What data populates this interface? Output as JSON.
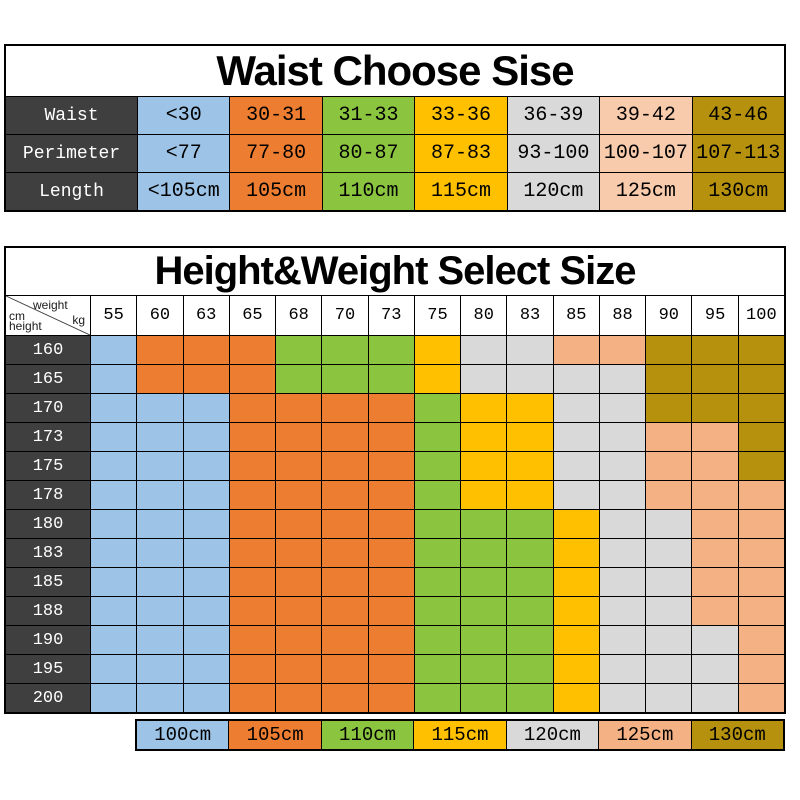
{
  "colors": {
    "blue": "#9DC3E6",
    "orange": "#ED7D31",
    "green": "#8BC540",
    "yellow": "#FFC000",
    "gray": "#D9D9D9",
    "peach": "#F4B183",
    "peach_light": "#F8CBAD",
    "gold": "#B5910E",
    "header_dark": "#3F3F3F",
    "border": "#000000",
    "header_text": "#FFFFFF",
    "body_text": "#000000",
    "page_background": "#FFFFFF"
  },
  "waist_table": {
    "title": "Waist Choose Sise",
    "column_colors": [
      "blue",
      "orange",
      "green",
      "yellow",
      "gray",
      "peach_light",
      "gold"
    ],
    "rows": [
      {
        "label": "Waist",
        "cells": [
          "<30",
          "30-31",
          "31-33",
          "33-36",
          "36-39",
          "39-42",
          "43-46"
        ]
      },
      {
        "label": "Perimeter",
        "cells": [
          "<77",
          "77-80",
          "80-87",
          "87-83",
          "93-100",
          "100-107",
          "107-113"
        ]
      },
      {
        "label": "Length",
        "cells": [
          "<105cm",
          "105cm",
          "110cm",
          "115cm",
          "120cm",
          "125cm",
          "130cm"
        ]
      }
    ]
  },
  "size_grid": {
    "title": "Height&Weight Select Size",
    "corner": {
      "weight_label": "weight",
      "kg_label": "kg",
      "cm_label": "cm",
      "height_label": "height"
    },
    "weight_columns": [
      "55",
      "60",
      "63",
      "65",
      "68",
      "70",
      "73",
      "75",
      "80",
      "83",
      "85",
      "88",
      "90",
      "95",
      "100"
    ],
    "rows": [
      {
        "height": "160",
        "cells": [
          "blue",
          "orange",
          "orange",
          "orange",
          "green",
          "green",
          "green",
          "yellow",
          "gray",
          "gray",
          "peach",
          "peach",
          "gold",
          "gold",
          "gold"
        ]
      },
      {
        "height": "165",
        "cells": [
          "blue",
          "orange",
          "orange",
          "orange",
          "green",
          "green",
          "green",
          "yellow",
          "gray",
          "gray",
          "gray",
          "gray",
          "gold",
          "gold",
          "gold"
        ]
      },
      {
        "height": "170",
        "cells": [
          "blue",
          "blue",
          "blue",
          "orange",
          "orange",
          "orange",
          "orange",
          "green",
          "yellow",
          "yellow",
          "gray",
          "gray",
          "gold",
          "gold",
          "gold"
        ]
      },
      {
        "height": "173",
        "cells": [
          "blue",
          "blue",
          "blue",
          "orange",
          "orange",
          "orange",
          "orange",
          "green",
          "yellow",
          "yellow",
          "gray",
          "gray",
          "peach",
          "peach",
          "gold"
        ]
      },
      {
        "height": "175",
        "cells": [
          "blue",
          "blue",
          "blue",
          "orange",
          "orange",
          "orange",
          "orange",
          "green",
          "yellow",
          "yellow",
          "gray",
          "gray",
          "peach",
          "peach",
          "gold"
        ]
      },
      {
        "height": "178",
        "cells": [
          "blue",
          "blue",
          "blue",
          "orange",
          "orange",
          "orange",
          "orange",
          "green",
          "yellow",
          "yellow",
          "gray",
          "gray",
          "peach",
          "peach",
          "peach"
        ]
      },
      {
        "height": "180",
        "cells": [
          "blue",
          "blue",
          "blue",
          "orange",
          "orange",
          "orange",
          "orange",
          "green",
          "green",
          "green",
          "yellow",
          "gray",
          "gray",
          "peach",
          "peach"
        ]
      },
      {
        "height": "183",
        "cells": [
          "blue",
          "blue",
          "blue",
          "orange",
          "orange",
          "orange",
          "orange",
          "green",
          "green",
          "green",
          "yellow",
          "gray",
          "gray",
          "peach",
          "peach"
        ]
      },
      {
        "height": "185",
        "cells": [
          "blue",
          "blue",
          "blue",
          "orange",
          "orange",
          "orange",
          "orange",
          "green",
          "green",
          "green",
          "yellow",
          "gray",
          "gray",
          "peach",
          "peach"
        ]
      },
      {
        "height": "188",
        "cells": [
          "blue",
          "blue",
          "blue",
          "orange",
          "orange",
          "orange",
          "orange",
          "green",
          "green",
          "green",
          "yellow",
          "gray",
          "gray",
          "peach",
          "peach"
        ]
      },
      {
        "height": "190",
        "cells": [
          "blue",
          "blue",
          "blue",
          "orange",
          "orange",
          "orange",
          "orange",
          "green",
          "green",
          "green",
          "yellow",
          "gray",
          "gray",
          "gray",
          "peach"
        ]
      },
      {
        "height": "195",
        "cells": [
          "blue",
          "blue",
          "blue",
          "orange",
          "orange",
          "orange",
          "orange",
          "green",
          "green",
          "green",
          "yellow",
          "gray",
          "gray",
          "gray",
          "peach"
        ]
      },
      {
        "height": "200",
        "cells": [
          "blue",
          "blue",
          "blue",
          "orange",
          "orange",
          "orange",
          "orange",
          "green",
          "green",
          "green",
          "yellow",
          "gray",
          "gray",
          "gray",
          "peach"
        ]
      }
    ]
  },
  "legend": {
    "items": [
      {
        "label": "100cm",
        "color": "blue"
      },
      {
        "label": "105cm",
        "color": "orange"
      },
      {
        "label": "110cm",
        "color": "green"
      },
      {
        "label": "115cm",
        "color": "yellow"
      },
      {
        "label": "120cm",
        "color": "gray"
      },
      {
        "label": "125cm",
        "color": "peach"
      },
      {
        "label": "130cm",
        "color": "gold"
      }
    ]
  },
  "chart_data": [
    {
      "type": "table",
      "title": "Waist Choose Sise",
      "rows": [
        [
          "Waist",
          "<30",
          "30-31",
          "31-33",
          "33-36",
          "36-39",
          "39-42",
          "43-46"
        ],
        [
          "Perimeter",
          "<77",
          "77-80",
          "80-87",
          "87-83",
          "93-100",
          "100-107",
          "107-113"
        ],
        [
          "Length",
          "<105cm",
          "105cm",
          "110cm",
          "115cm",
          "120cm",
          "125cm",
          "130cm"
        ]
      ]
    },
    {
      "type": "heatmap",
      "title": "Height&Weight Select Size",
      "xlabel": "weight kg",
      "ylabel": "height cm",
      "x": [
        "55",
        "60",
        "63",
        "65",
        "68",
        "70",
        "73",
        "75",
        "80",
        "83",
        "85",
        "88",
        "90",
        "95",
        "100"
      ],
      "y": [
        "160",
        "165",
        "170",
        "173",
        "175",
        "178",
        "180",
        "183",
        "185",
        "188",
        "190",
        "195",
        "200"
      ],
      "values": [
        [
          "100cm",
          "105cm",
          "105cm",
          "105cm",
          "110cm",
          "110cm",
          "110cm",
          "115cm",
          "120cm",
          "120cm",
          "125cm",
          "125cm",
          "130cm",
          "130cm",
          "130cm"
        ],
        [
          "100cm",
          "105cm",
          "105cm",
          "105cm",
          "110cm",
          "110cm",
          "110cm",
          "115cm",
          "120cm",
          "120cm",
          "120cm",
          "120cm",
          "130cm",
          "130cm",
          "130cm"
        ],
        [
          "100cm",
          "100cm",
          "100cm",
          "105cm",
          "105cm",
          "105cm",
          "105cm",
          "110cm",
          "115cm",
          "115cm",
          "120cm",
          "120cm",
          "130cm",
          "130cm",
          "130cm"
        ],
        [
          "100cm",
          "100cm",
          "100cm",
          "105cm",
          "105cm",
          "105cm",
          "105cm",
          "110cm",
          "115cm",
          "115cm",
          "120cm",
          "120cm",
          "125cm",
          "125cm",
          "130cm"
        ],
        [
          "100cm",
          "100cm",
          "100cm",
          "105cm",
          "105cm",
          "105cm",
          "105cm",
          "110cm",
          "115cm",
          "115cm",
          "120cm",
          "120cm",
          "125cm",
          "125cm",
          "130cm"
        ],
        [
          "100cm",
          "100cm",
          "100cm",
          "105cm",
          "105cm",
          "105cm",
          "105cm",
          "110cm",
          "115cm",
          "115cm",
          "120cm",
          "120cm",
          "125cm",
          "125cm",
          "125cm"
        ],
        [
          "100cm",
          "100cm",
          "100cm",
          "105cm",
          "105cm",
          "105cm",
          "105cm",
          "110cm",
          "110cm",
          "110cm",
          "115cm",
          "120cm",
          "120cm",
          "125cm",
          "125cm"
        ],
        [
          "100cm",
          "100cm",
          "100cm",
          "105cm",
          "105cm",
          "105cm",
          "105cm",
          "110cm",
          "110cm",
          "110cm",
          "115cm",
          "120cm",
          "120cm",
          "125cm",
          "125cm"
        ],
        [
          "100cm",
          "100cm",
          "100cm",
          "105cm",
          "105cm",
          "105cm",
          "105cm",
          "110cm",
          "110cm",
          "110cm",
          "115cm",
          "120cm",
          "120cm",
          "125cm",
          "125cm"
        ],
        [
          "100cm",
          "100cm",
          "100cm",
          "105cm",
          "105cm",
          "105cm",
          "105cm",
          "110cm",
          "110cm",
          "110cm",
          "115cm",
          "120cm",
          "120cm",
          "125cm",
          "125cm"
        ],
        [
          "100cm",
          "100cm",
          "100cm",
          "105cm",
          "105cm",
          "105cm",
          "105cm",
          "110cm",
          "110cm",
          "110cm",
          "115cm",
          "120cm",
          "120cm",
          "120cm",
          "125cm"
        ],
        [
          "100cm",
          "100cm",
          "100cm",
          "105cm",
          "105cm",
          "105cm",
          "105cm",
          "110cm",
          "110cm",
          "110cm",
          "115cm",
          "120cm",
          "120cm",
          "120cm",
          "125cm"
        ],
        [
          "100cm",
          "100cm",
          "100cm",
          "105cm",
          "105cm",
          "105cm",
          "105cm",
          "110cm",
          "110cm",
          "110cm",
          "115cm",
          "120cm",
          "120cm",
          "120cm",
          "125cm"
        ]
      ],
      "legend": [
        "100cm",
        "105cm",
        "110cm",
        "115cm",
        "120cm",
        "125cm",
        "130cm"
      ],
      "legend_position": "bottom"
    }
  ]
}
